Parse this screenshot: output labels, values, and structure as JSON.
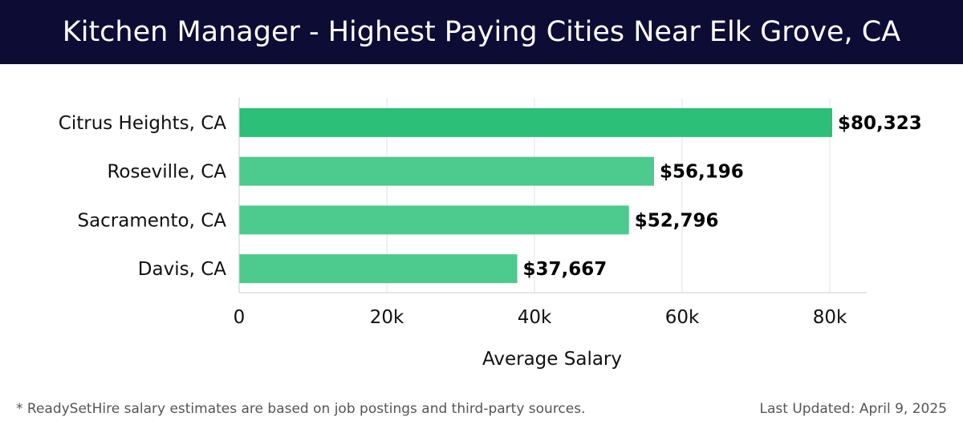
{
  "header": {
    "title": "Kitchen Manager - Highest Paying Cities Near Elk Grove, CA"
  },
  "chart_data": {
    "type": "bar",
    "orientation": "horizontal",
    "categories": [
      "Citrus Heights, CA",
      "Roseville, CA",
      "Sacramento, CA",
      "Davis, CA"
    ],
    "values": [
      80323,
      56196,
      52796,
      37667
    ],
    "value_labels": [
      "$80,323",
      "$56,196",
      "$52,796",
      "$37,667"
    ],
    "xlabel": "Average Salary",
    "ylabel": "",
    "xlim": [
      0,
      85000
    ],
    "xticks": [
      0,
      20000,
      40000,
      60000,
      80000
    ],
    "xtick_labels": [
      "0",
      "20k",
      "40k",
      "60k",
      "80k"
    ],
    "grid": true,
    "colors": {
      "top_bar": "#2bbf78",
      "other_bars": "#4dca8e"
    }
  },
  "footer": {
    "note": "* ReadySetHire salary estimates are based on job postings and third-party sources.",
    "updated": "Last Updated: April 9, 2025"
  }
}
